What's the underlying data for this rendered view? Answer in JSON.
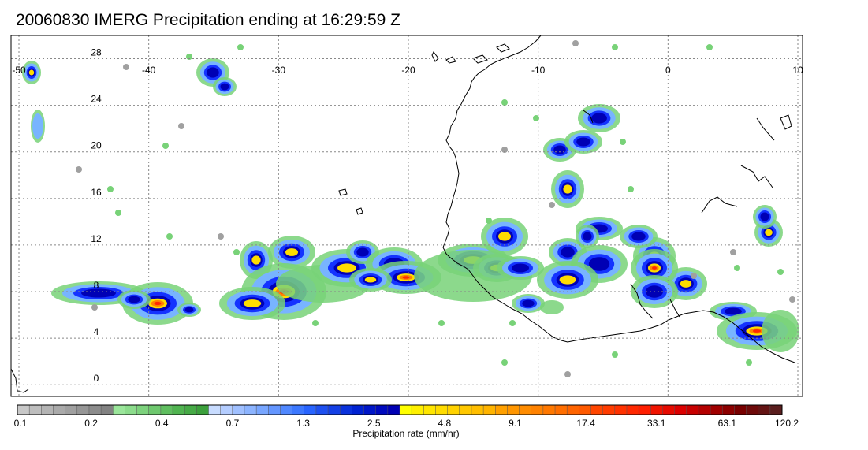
{
  "title": "20060830 IMERG Precipitation ending at 16:29:59 Z",
  "map": {
    "lon_range": [
      -50,
      10
    ],
    "lat_range": [
      -1,
      30
    ],
    "lon_ticks": [
      "-50",
      "-40",
      "-30",
      "-20",
      "-10",
      "0",
      "10"
    ],
    "lat_ticks": [
      "28",
      "24",
      "20",
      "16",
      "12",
      "8",
      "4",
      "0"
    ],
    "gridlines": true
  },
  "colorbar": {
    "label": "Precipitation rate (mm/hr)",
    "tick_labels": [
      "0.1",
      "0.2",
      "0.4",
      "0.7",
      "1.3",
      "2.5",
      "4.8",
      "9.1",
      "17.4",
      "33.1",
      "63.1",
      "120.2"
    ],
    "colors": [
      "#c8c8c8",
      "#bebebe",
      "#b4b4b4",
      "#aaaaaa",
      "#a0a0a0",
      "#969696",
      "#8c8c8c",
      "#828282",
      "#9be69b",
      "#8cdc8c",
      "#7dd27d",
      "#6ec86e",
      "#5fbe5f",
      "#50b450",
      "#46aa46",
      "#3ca03c",
      "#c8dcff",
      "#b4cdff",
      "#a0c0ff",
      "#8cb4ff",
      "#78a6ff",
      "#6496ff",
      "#5088ff",
      "#3c78ff",
      "#2864ff",
      "#1e50f0",
      "#1440e6",
      "#0a32dc",
      "#0022d2",
      "#0016c8",
      "#000abe",
      "#0000b4",
      "#ffff00",
      "#fff000",
      "#ffe600",
      "#ffdc00",
      "#ffd200",
      "#ffc800",
      "#ffbe00",
      "#ffb400",
      "#ffa000",
      "#ff9600",
      "#ff8c00",
      "#ff8200",
      "#ff7800",
      "#ff6e00",
      "#ff6400",
      "#ff5a00",
      "#ff4600",
      "#ff3c00",
      "#ff3200",
      "#ff2800",
      "#ff1e00",
      "#f01400",
      "#e60a00",
      "#dc0000",
      "#c80000",
      "#b40000",
      "#a00000",
      "#8c0000",
      "#780000",
      "#6e0a0a",
      "#641414",
      "#5a1e1e"
    ]
  },
  "palette": {
    "light_gray": "#a0a0a0",
    "light_green": "#78d278",
    "light_blue": "#78b4ff",
    "blue": "#1432ff",
    "dark_blue": "#0000b4",
    "yellow": "#ffdc00",
    "orange": "#ff8200",
    "red": "#ff2800",
    "dark_red": "#a00000",
    "coast": "#000000",
    "grid": "#888888"
  }
}
